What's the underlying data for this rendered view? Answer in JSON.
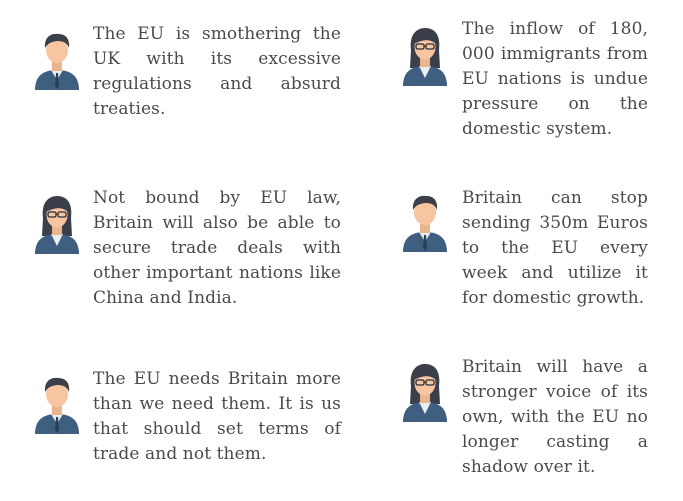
{
  "cards": [
    {
      "avatar": "man-avatar-icon",
      "text": "The EU is smothering the UK with its excessive regulations and absurd treaties."
    },
    {
      "avatar": "woman-with-glasses-avatar-icon",
      "text": "The inflow of 180, 000 immigrants from EU nations is undue pressure on the domestic system."
    },
    {
      "avatar": "woman-with-glasses-avatar-icon",
      "text": "Not bound by EU law, Britain will also be able to secure trade deals with other important nations like China and India."
    },
    {
      "avatar": "man-avatar-icon",
      "text": "Britain can stop sending 350m Euros to the EU every week and utilize it for domestic growth."
    },
    {
      "avatar": "man-avatar-icon",
      "text": "The EU needs Britain more than we need them. It is us that should set terms of trade and not them."
    },
    {
      "avatar": "woman-with-glasses-avatar-icon",
      "text": "Britain will have a stronger voice of its own, with the EU no longer casting a shadow over it."
    }
  ],
  "colors": {
    "text": "#4a4a4a",
    "jacket": "#3f5f80",
    "skin": "#f7c6a1",
    "hair": "#3b3f4a",
    "shirt": "#e9eef3"
  }
}
